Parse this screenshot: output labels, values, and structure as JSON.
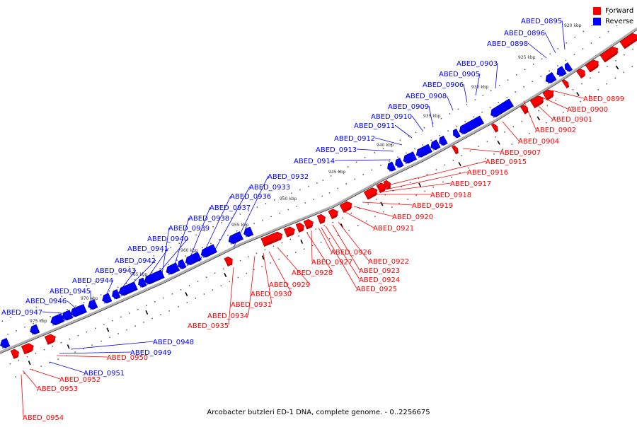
{
  "legend": [
    {
      "label": "Forward",
      "color": "#ff0000"
    },
    {
      "label": "Reverse",
      "color": "#0000ff"
    }
  ],
  "caption": "Arcobacter butzleri ED-1 DNA, complete genome. - 0..2256675",
  "colors": {
    "forward": "#ff0000",
    "reverse": "#0000ff",
    "forward_dark": "#a00000",
    "reverse_dark": "#0000a0",
    "axis": "#808080"
  },
  "ticks": [
    "920 kbp",
    "925 kbp",
    "930 kbp",
    "935 kbp",
    "940 kbp",
    "945 kbp",
    "950 kbp",
    "955 kbp",
    "960 kbp",
    "965 kbp",
    "970 kbp",
    "975 kbp"
  ],
  "reverse_genes": [
    "ABED_0895",
    "ABED_0896",
    "ABED_0898",
    "ABED_0903",
    "ABED_0905",
    "ABED_0906",
    "ABED_0908",
    "ABED_0909",
    "ABED_0910",
    "ABED_0911",
    "ABED_0912",
    "ABED_0913",
    "ABED_0914",
    "ABED_0932",
    "ABED_0933",
    "ABED_0936",
    "ABED_0937",
    "ABED_0938",
    "ABED_0939",
    "ABED_0940",
    "ABED_0941",
    "ABED_0942",
    "ABED_0943",
    "ABED_0944",
    "ABED_0945",
    "ABED_0946",
    "ABED_0947",
    "ABED_0948",
    "ABED_0949",
    "ABED_0951"
  ],
  "forward_genes": [
    "ABED_0899",
    "ABED_0900",
    "ABED_0901",
    "ABED_0902",
    "ABED_0904",
    "ABED_0907",
    "ABED_0915",
    "ABED_0916",
    "ABED_0917",
    "ABED_0918",
    "ABED_0919",
    "ABED_0920",
    "ABED_0921",
    "ABED_0922",
    "ABED_0923",
    "ABED_0924",
    "ABED_0925",
    "ABED_0926",
    "ABED_0927",
    "ABED_0928",
    "ABED_0929",
    "ABED_0930",
    "ABED_0931",
    "ABED_0934",
    "ABED_0935",
    "ABED_0950",
    "ABED_0952",
    "ABED_0953",
    "ABED_0954"
  ]
}
